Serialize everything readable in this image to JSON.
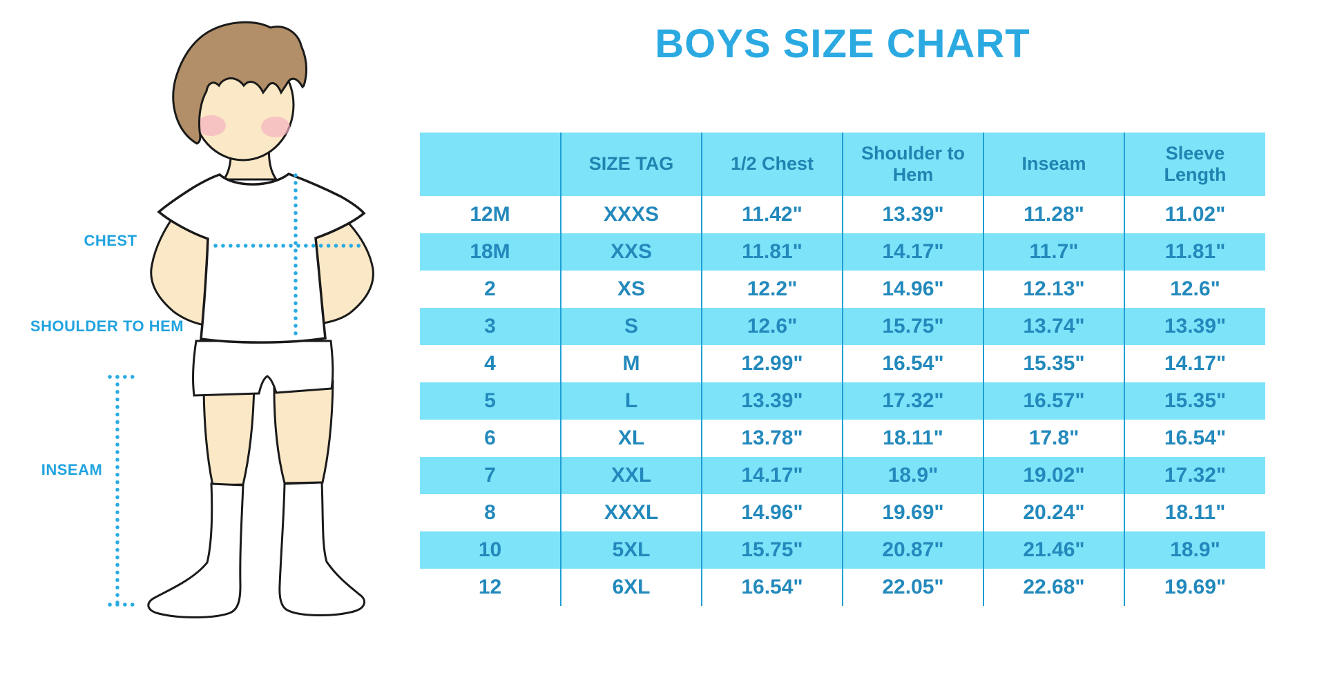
{
  "title": "BOYS SIZE CHART",
  "colors": {
    "title_blue": "#2BA9E1",
    "band_bg": "#7DE3F9",
    "table_text": "#2389BC",
    "header_text": "#1F84B0",
    "grid_line": "#1E9FD4",
    "label_blue": "#21A3DF",
    "skin": "#FBE8C6",
    "hair": "#B28F68",
    "blush": "#F4AFC0",
    "outline": "#1A1A1A"
  },
  "diagram": {
    "labels": {
      "chest": "CHEST",
      "shoulder_to_hem": "SHOULDER TO HEM",
      "inseam": "INSEAM"
    }
  },
  "table": {
    "headers": [
      "",
      "SIZE TAG",
      "1/2 Chest",
      "Shoulder to Hem",
      "Inseam",
      "Sleeve Length"
    ],
    "col_keys": [
      "size",
      "size-tag",
      "half-chest",
      "shoulder-to-hem",
      "inseam",
      "sleeve-length"
    ],
    "rows": [
      [
        "12M",
        "XXXS",
        "11.42\"",
        "13.39\"",
        "11.28\"",
        "11.02\""
      ],
      [
        "18M",
        "XXS",
        "11.81\"",
        "14.17\"",
        "11.7\"",
        "11.81\""
      ],
      [
        "2",
        "XS",
        "12.2\"",
        "14.96\"",
        "12.13\"",
        "12.6\""
      ],
      [
        "3",
        "S",
        "12.6\"",
        "15.75\"",
        "13.74\"",
        "13.39\""
      ],
      [
        "4",
        "M",
        "12.99\"",
        "16.54\"",
        "15.35\"",
        "14.17\""
      ],
      [
        "5",
        "L",
        "13.39\"",
        "17.32\"",
        "16.57\"",
        "15.35\""
      ],
      [
        "6",
        "XL",
        "13.78\"",
        "18.11\"",
        "17.8\"",
        "16.54\""
      ],
      [
        "7",
        "XXL",
        "14.17\"",
        "18.9\"",
        "19.02\"",
        "17.32\""
      ],
      [
        "8",
        "XXXL",
        "14.96\"",
        "19.69\"",
        "20.24\"",
        "18.11\""
      ],
      [
        "10",
        "5XL",
        "15.75\"",
        "20.87\"",
        "21.46\"",
        "18.9\""
      ],
      [
        "12",
        "6XL",
        "16.54\"",
        "22.05\"",
        "22.68\"",
        "19.69\""
      ]
    ]
  },
  "chart_data": {
    "type": "table",
    "title": "BOYS SIZE CHART",
    "units": "inches",
    "columns": [
      "Size",
      "SIZE TAG",
      "1/2 Chest",
      "Shoulder to Hem",
      "Inseam",
      "Sleeve Length"
    ],
    "rows": [
      [
        "12M",
        "XXXS",
        11.42,
        13.39,
        11.28,
        11.02
      ],
      [
        "18M",
        "XXS",
        11.81,
        14.17,
        11.7,
        11.81
      ],
      [
        "2",
        "XS",
        12.2,
        14.96,
        12.13,
        12.6
      ],
      [
        "3",
        "S",
        12.6,
        15.75,
        13.74,
        13.39
      ],
      [
        "4",
        "M",
        12.99,
        16.54,
        15.35,
        14.17
      ],
      [
        "5",
        "L",
        13.39,
        17.32,
        16.57,
        15.35
      ],
      [
        "6",
        "XL",
        13.78,
        18.11,
        17.8,
        16.54
      ],
      [
        "7",
        "XXL",
        14.17,
        18.9,
        19.02,
        17.32
      ],
      [
        "8",
        "XXXL",
        14.96,
        19.69,
        20.24,
        18.11
      ],
      [
        "10",
        "5XL",
        15.75,
        20.87,
        21.46,
        18.9
      ],
      [
        "12",
        "6XL",
        16.54,
        22.05,
        22.68,
        19.69
      ]
    ]
  }
}
